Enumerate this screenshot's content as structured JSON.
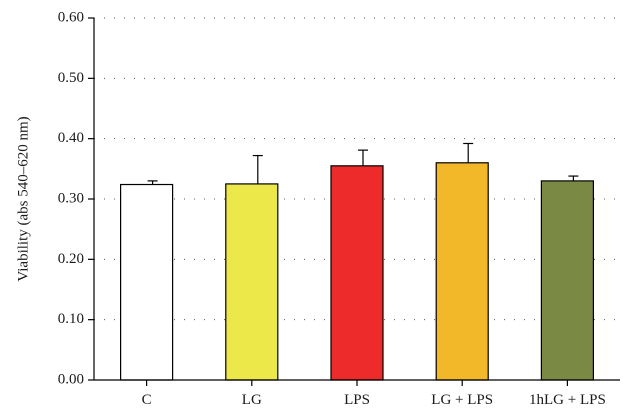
{
  "chart_data": {
    "type": "bar",
    "title": "",
    "xlabel": "",
    "ylabel": "Viability (abs 540–620 nm)",
    "ylim": [
      0,
      0.6
    ],
    "yticks": [
      "0.00",
      "0.10",
      "0.20",
      "0.30",
      "0.40",
      "0.50",
      "0.60"
    ],
    "grid": "dotted horizontal",
    "categories": [
      "C",
      "LG",
      "LPS",
      "LG + LPS",
      "1hLG + LPS"
    ],
    "values": [
      0.324,
      0.325,
      0.355,
      0.36,
      0.33
    ],
    "errors": [
      0.006,
      0.047,
      0.026,
      0.032,
      0.008
    ],
    "colors": [
      "#ffffff",
      "#ede84a",
      "#ee2b2b",
      "#f3b72a",
      "#7a8a45"
    ]
  }
}
